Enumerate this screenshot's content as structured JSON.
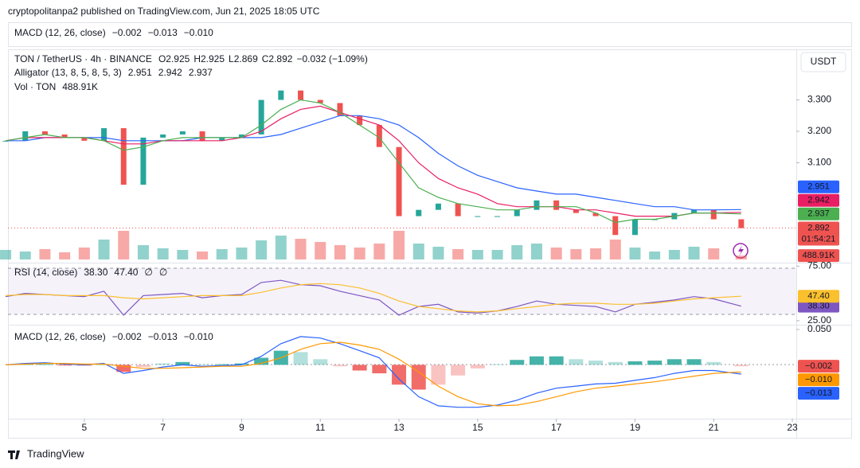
{
  "header": {
    "publisher": "cryptopolitanpa2 published on TradingView.com, Jun 21, 2025 18:05 UTC",
    "collapsed_pane": {
      "title": "MACD (12, 26, close)",
      "values": [
        "−0.002",
        "−0.013",
        "−0.010"
      ],
      "colors": [
        "#f23645",
        "#2962ff",
        "#ff9800"
      ]
    }
  },
  "chart_data": [
    {
      "type": "candlestick",
      "title": "TON / TetherUS · 4h · BINANCE",
      "ohlc": [
        [
          "O",
          "2.925"
        ],
        [
          "H",
          "2.925"
        ],
        [
          "L",
          "2.869"
        ],
        [
          "C",
          "2.892"
        ]
      ],
      "change": "−0.032 (−1.09%)",
      "x": [
        3,
        3.5,
        4,
        4.5,
        5,
        5.5,
        6,
        6.5,
        7,
        7.5,
        8,
        8.5,
        9,
        9.5,
        10,
        10.5,
        11,
        11.5,
        12,
        12.5,
        13,
        13.5,
        14,
        14.5,
        15,
        15.5,
        16,
        16.5,
        17,
        17.5,
        18,
        18.5,
        19,
        19.5,
        20,
        20.5,
        21,
        21.7
      ],
      "values": [
        3.17,
        3.2,
        3.19,
        3.18,
        3.17,
        3.21,
        3.03,
        3.18,
        3.19,
        3.2,
        3.17,
        3.18,
        3.19,
        3.3,
        3.33,
        3.3,
        3.29,
        3.25,
        3.22,
        3.15,
        2.93,
        2.95,
        2.97,
        2.93,
        2.93,
        2.93,
        2.95,
        2.98,
        2.95,
        2.94,
        2.93,
        2.87,
        2.92,
        2.92,
        2.94,
        2.95,
        2.92,
        2.892
      ],
      "last_label": "2.892",
      "countdown": "01:54:21",
      "color_up": "#26a69a",
      "color_down": "#ef5350",
      "overlay_title": "Alligator (13, 8, 5, 8, 5, 3)",
      "series": [
        {
          "color": "#2962ff",
          "value_label": "2.951",
          "values": [
            3.17,
            3.17,
            3.18,
            3.18,
            3.18,
            3.18,
            3.17,
            3.17,
            3.17,
            3.17,
            3.18,
            3.18,
            3.18,
            3.18,
            3.19,
            3.21,
            3.23,
            3.25,
            3.25,
            3.24,
            3.22,
            3.18,
            3.13,
            3.09,
            3.06,
            3.04,
            3.02,
            3.01,
            3.0,
            3.0,
            2.99,
            2.98,
            2.97,
            2.96,
            2.96,
            2.95,
            2.95,
            2.951
          ]
        },
        {
          "color": "#e91e63",
          "value_label": "2.942",
          "values": [
            3.17,
            3.18,
            3.18,
            3.18,
            3.18,
            3.17,
            3.16,
            3.16,
            3.17,
            3.17,
            3.17,
            3.17,
            3.18,
            3.2,
            3.24,
            3.27,
            3.28,
            3.26,
            3.24,
            3.22,
            3.17,
            3.1,
            3.05,
            3.02,
            3.0,
            2.97,
            2.96,
            2.96,
            2.96,
            2.95,
            2.95,
            2.94,
            2.93,
            2.93,
            2.93,
            2.94,
            2.94,
            2.942
          ]
        },
        {
          "color": "#4caf50",
          "value_label": "2.937",
          "values": [
            3.17,
            3.18,
            3.19,
            3.18,
            3.18,
            3.17,
            3.14,
            3.15,
            3.17,
            3.18,
            3.18,
            3.18,
            3.18,
            3.22,
            3.27,
            3.3,
            3.29,
            3.26,
            3.22,
            3.18,
            3.1,
            3.02,
            2.99,
            2.97,
            2.96,
            2.95,
            2.95,
            2.96,
            2.96,
            2.96,
            2.94,
            2.91,
            2.92,
            2.92,
            2.93,
            2.94,
            2.94,
            2.937
          ]
        }
      ],
      "xlim": [
        3.06,
        23.1
      ],
      "ylim": [
        2.787,
        3.461
      ],
      "yticks": [
        {
          "value": 3.1,
          "label": "3.100"
        },
        {
          "value": 3.2,
          "label": "3.200"
        },
        {
          "value": 3.3,
          "label": "3.300"
        }
      ],
      "axis_label": "USDT"
    },
    {
      "type": "bar",
      "title": "Vol · TON",
      "value_label": "488.91K",
      "ylim": [
        0,
        7000000
      ],
      "values": [
        1200000,
        1000000,
        1300000,
        900000,
        1500000,
        2500000,
        3600000,
        1800000,
        1400000,
        1200000,
        1000000,
        1300000,
        1500000,
        2400000,
        3000000,
        2600000,
        2200000,
        1800000,
        1500000,
        2000000,
        3600000,
        2000000,
        1600000,
        1300000,
        1200000,
        1200000,
        1800000,
        2000000,
        1500000,
        1300000,
        1400000,
        2500000,
        1500000,
        1000000,
        1200000,
        1600000,
        1400000,
        488910
      ]
    },
    {
      "type": "line",
      "title": "RSI (14, close)",
      "extra_labels": [
        "∅",
        "∅"
      ],
      "series": [
        {
          "color": "#7e57c2",
          "value_label": "38.30",
          "values": [
            47,
            50,
            49,
            48,
            47,
            52,
            30,
            48,
            49,
            50,
            46,
            48,
            49,
            60,
            62,
            58,
            57,
            52,
            48,
            44,
            30,
            38,
            40,
            33,
            32,
            34,
            38,
            43,
            40,
            39,
            38,
            33,
            40,
            42,
            44,
            47,
            45,
            38.3
          ]
        },
        {
          "color": "#fbc02d",
          "value_label": "47.40",
          "values": [
            48,
            49,
            49,
            48,
            48,
            48,
            46,
            45,
            46,
            47,
            48,
            48,
            48,
            51,
            55,
            58,
            59,
            58,
            55,
            50,
            43,
            38,
            36,
            34,
            33,
            34,
            36,
            38,
            40,
            41,
            41,
            40,
            40,
            41,
            43,
            45,
            46,
            47.4
          ]
        }
      ],
      "ylim": [
        22,
        76
      ],
      "yticks": [
        {
          "value": 75,
          "label": "75.00"
        },
        {
          "value": 25,
          "label": "25.00"
        }
      ]
    },
    {
      "type": "macd",
      "title": "MACD (12, 26, close)",
      "histogram": {
        "color_up": "#26a69a",
        "color_down": "#ef5350",
        "value_label": "−0.002",
        "values": [
          0,
          0.001,
          0.001,
          -0.001,
          -0.001,
          0.001,
          -0.01,
          -0.003,
          0.002,
          0.004,
          0.001,
          0.001,
          0.002,
          0.01,
          0.02,
          0.018,
          0.008,
          -0.002,
          -0.008,
          -0.012,
          -0.028,
          -0.035,
          -0.028,
          -0.015,
          -0.005,
          0.001,
          0.007,
          0.012,
          0.012,
          0.008,
          0.006,
          0.004,
          0.005,
          0.006,
          0.008,
          0.008,
          0.004,
          -0.002
        ]
      },
      "series": [
        {
          "color": "#2962ff",
          "value_label": "−0.013",
          "values": [
            0,
            0.002,
            0.003,
            0.001,
            0,
            0.002,
            -0.012,
            -0.008,
            -0.003,
            0,
            -0.002,
            -0.001,
            0,
            0.012,
            0.03,
            0.04,
            0.038,
            0.03,
            0.02,
            0.01,
            -0.02,
            -0.045,
            -0.058,
            -0.06,
            -0.06,
            -0.057,
            -0.05,
            -0.04,
            -0.033,
            -0.03,
            -0.027,
            -0.026,
            -0.022,
            -0.018,
            -0.012,
            -0.008,
            -0.008,
            -0.013
          ]
        },
        {
          "color": "#ff9800",
          "value_label": "−0.010",
          "values": [
            0,
            0.001,
            0.002,
            0.002,
            0.001,
            0.001,
            -0.002,
            -0.005,
            -0.005,
            -0.004,
            -0.003,
            -0.002,
            -0.002,
            0.002,
            0.01,
            0.022,
            0.03,
            0.032,
            0.028,
            0.022,
            0.008,
            -0.01,
            -0.03,
            -0.045,
            -0.055,
            -0.058,
            -0.057,
            -0.052,
            -0.045,
            -0.038,
            -0.033,
            -0.03,
            -0.027,
            -0.024,
            -0.02,
            -0.016,
            -0.012,
            -0.01
          ]
        }
      ],
      "ylim": [
        -0.0761,
        0.0545
      ],
      "yticks": [
        {
          "value": 0.05,
          "label": "0.050"
        }
      ],
      "xlim": [
        3.06,
        23.1
      ],
      "xticks": [
        5,
        7,
        9,
        11,
        13,
        15,
        17,
        19,
        21,
        23
      ]
    }
  ],
  "footer": "TradingView"
}
